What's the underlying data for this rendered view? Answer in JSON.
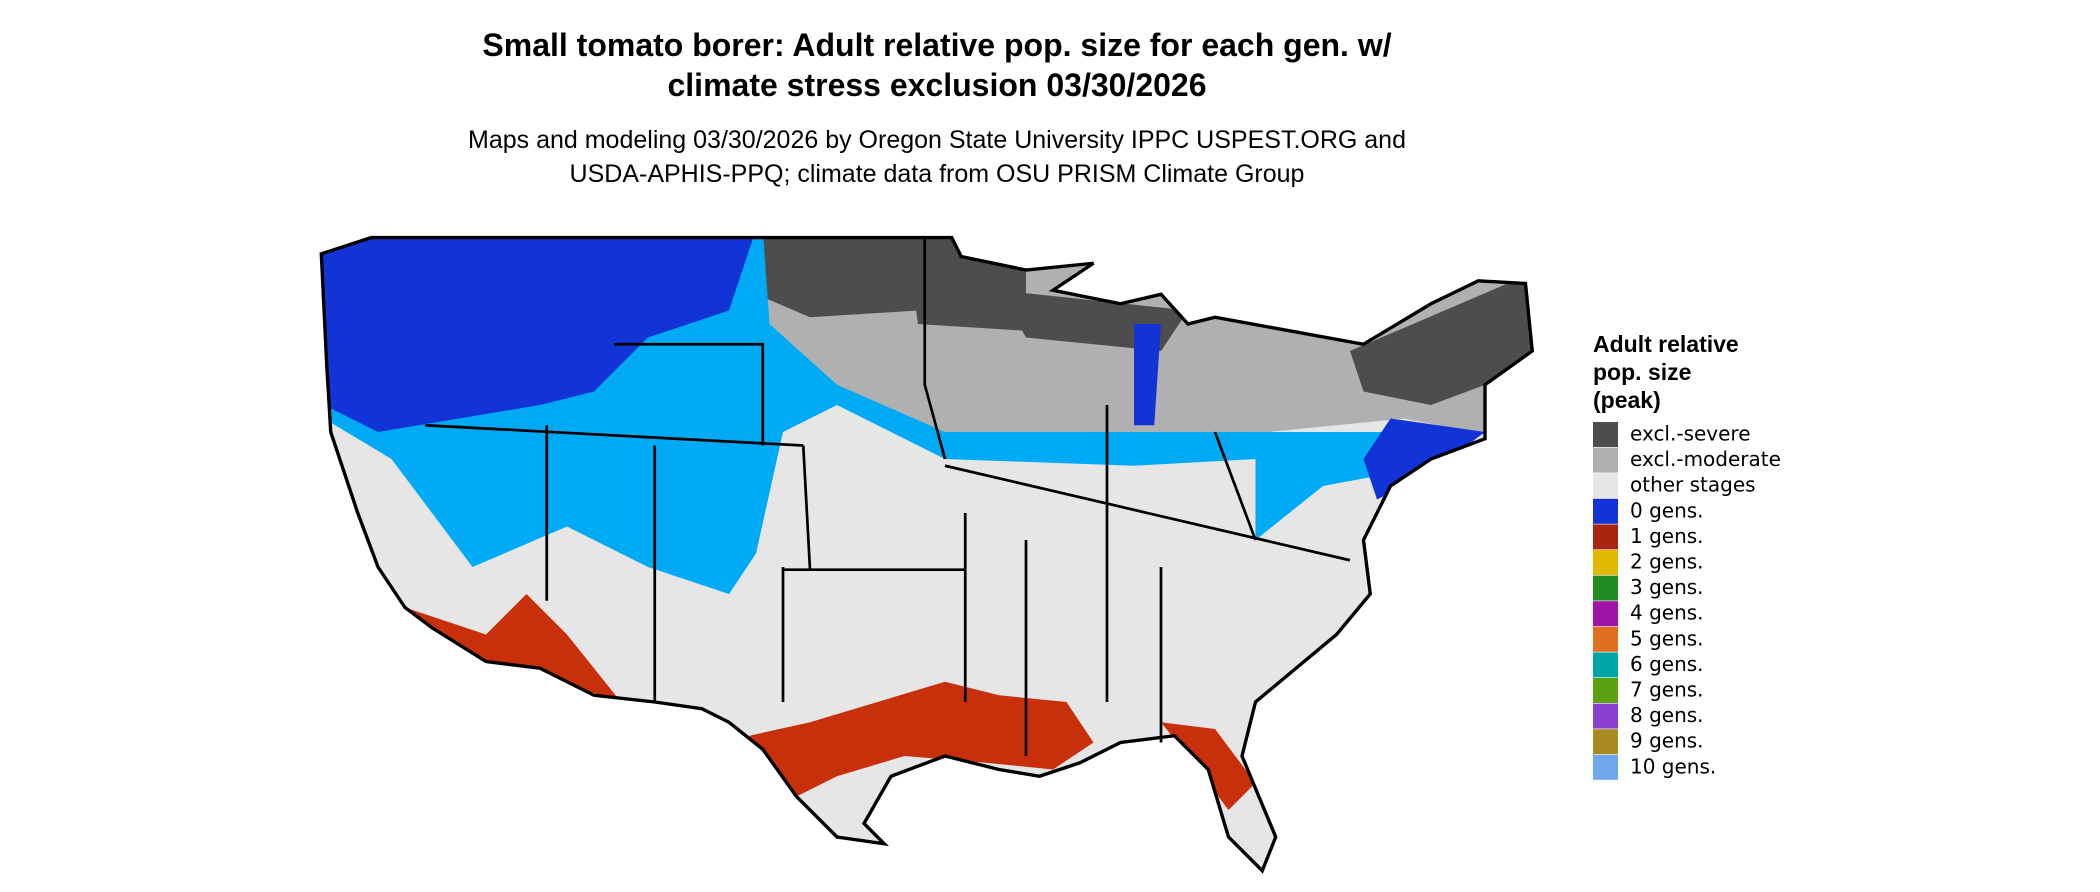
{
  "title": [
    "Small tomato borer: Adult relative pop. size for each gen. w/",
    "climate stress exclusion 03/30/2026"
  ],
  "subtitle": [
    "Maps and modeling 03/30/2026 by Oregon State University IPPC USPEST.ORG and",
    "USDA-APHIS-PPQ; climate data from OSU PRISM Climate Group"
  ],
  "legend": {
    "title": [
      "Adult relative",
      "pop. size",
      "(peak)"
    ],
    "items": [
      {
        "label": "excl.-severe",
        "color": "#4d4d4d"
      },
      {
        "label": "excl.-moderate",
        "color": "#b0b0b0"
      },
      {
        "label": "other stages",
        "color": "#e6e6e6"
      },
      {
        "label": "0 gens.",
        "color": "#1234d6"
      },
      {
        "label": "1 gens.",
        "color": "#a8250f"
      },
      {
        "label": "2 gens.",
        "color": "#e0b800"
      },
      {
        "label": "3 gens.",
        "color": "#228b22"
      },
      {
        "label": "4 gens.",
        "color": "#a012a8"
      },
      {
        "label": "5 gens.",
        "color": "#e07020"
      },
      {
        "label": "6 gens.",
        "color": "#00a6a6"
      },
      {
        "label": "7 gens.",
        "color": "#5aa010"
      },
      {
        "label": "8 gens.",
        "color": "#8a3fd0"
      },
      {
        "label": "9 gens.",
        "color": "#a88a20"
      },
      {
        "label": "10 gens.",
        "color": "#70a8f0"
      }
    ]
  }
}
